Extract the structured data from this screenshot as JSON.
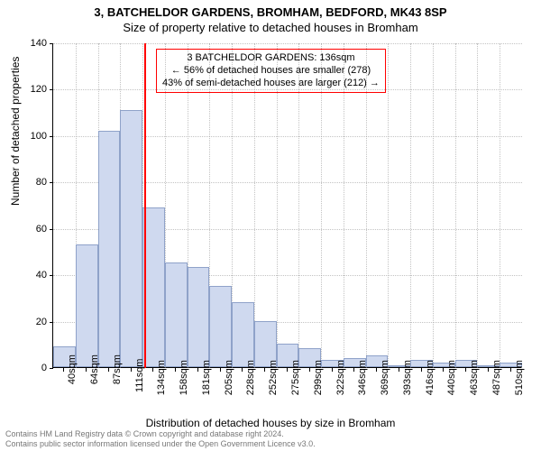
{
  "title": "3, BATCHELDOR GARDENS, BROMHAM, BEDFORD, MK43 8SP",
  "subtitle": "Size of property relative to detached houses in Bromham",
  "ylabel": "Number of detached properties",
  "xlabel": "Distribution of detached houses by size in Bromham",
  "chart": {
    "type": "histogram",
    "ylim": [
      0,
      140
    ],
    "ytick_step": 20,
    "x_categories": [
      "40sqm",
      "64sqm",
      "87sqm",
      "111sqm",
      "134sqm",
      "158sqm",
      "181sqm",
      "205sqm",
      "228sqm",
      "252sqm",
      "275sqm",
      "299sqm",
      "322sqm",
      "346sqm",
      "369sqm",
      "393sqm",
      "416sqm",
      "440sqm",
      "463sqm",
      "487sqm",
      "510sqm"
    ],
    "values": [
      9,
      53,
      102,
      111,
      69,
      45,
      43,
      35,
      28,
      20,
      10,
      8,
      3,
      4,
      5,
      0,
      3,
      2,
      3,
      0,
      2
    ],
    "bar_fill": "#cfd9ef",
    "bar_stroke": "#8fa2c9",
    "grid_color": "#888888",
    "background": "#ffffff",
    "reference_line": {
      "value_sqm": 136,
      "color": "#ff0000",
      "width": 2
    },
    "annotation": {
      "line1": "3 BATCHELDOR GARDENS: 136sqm",
      "line2": "← 56% of detached houses are smaller (278)",
      "line3": "43% of semi-detached houses are larger (212) →",
      "border_color": "#ff0000",
      "fontsize": 11
    }
  },
  "footer": {
    "line1": "Contains HM Land Registry data © Crown copyright and database right 2024.",
    "line2": "Contains public sector information licensed under the Open Government Licence v3.0."
  }
}
